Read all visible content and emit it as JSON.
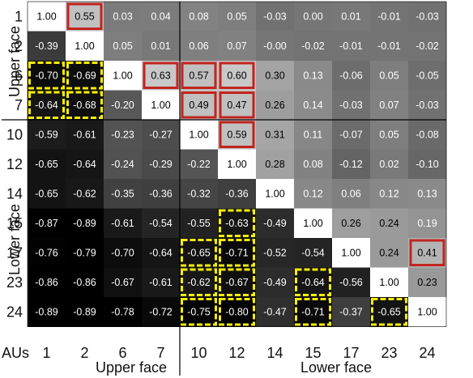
{
  "chart_data": {
    "type": "heatmap",
    "aus": [
      "1",
      "2",
      "6",
      "7",
      "10",
      "12",
      "14",
      "15",
      "17",
      "23",
      "24"
    ],
    "axis_label": "AUs",
    "groups": {
      "upper": "Upper face",
      "lower": "Lower face"
    },
    "values": [
      [
        1.0,
        0.55,
        0.03,
        0.04,
        0.08,
        0.05,
        -0.03,
        0.0,
        0.01,
        -0.01,
        -0.03
      ],
      [
        -0.39,
        1.0,
        0.05,
        0.01,
        0.06,
        0.07,
        -0.0,
        -0.02,
        -0.01,
        -0.01,
        -0.02
      ],
      [
        -0.7,
        -0.69,
        1.0,
        0.63,
        0.57,
        0.6,
        0.3,
        0.13,
        -0.06,
        0.05,
        -0.05
      ],
      [
        -0.64,
        -0.68,
        -0.2,
        1.0,
        0.49,
        0.47,
        0.26,
        0.14,
        -0.03,
        0.07,
        -0.03
      ],
      [
        -0.59,
        -0.61,
        -0.23,
        -0.27,
        1.0,
        0.59,
        0.31,
        0.11,
        -0.07,
        0.05,
        -0.08
      ],
      [
        -0.65,
        -0.64,
        -0.24,
        -0.29,
        -0.22,
        1.0,
        0.28,
        0.08,
        -0.12,
        0.02,
        -0.1
      ],
      [
        -0.65,
        -0.62,
        -0.35,
        -0.36,
        -0.32,
        -0.36,
        1.0,
        0.12,
        0.06,
        0.12,
        0.13
      ],
      [
        -0.87,
        -0.89,
        -0.61,
        -0.54,
        -0.55,
        -0.63,
        -0.49,
        1.0,
        0.26,
        0.24,
        0.19
      ],
      [
        -0.76,
        -0.79,
        -0.7,
        -0.64,
        -0.65,
        -0.71,
        -0.52,
        -0.54,
        1.0,
        0.24,
        0.41
      ],
      [
        -0.86,
        -0.86,
        -0.67,
        -0.61,
        -0.62,
        -0.67,
        -0.49,
        -0.64,
        -0.56,
        1.0,
        0.23
      ],
      [
        -0.89,
        -0.89,
        -0.78,
        -0.72,
        -0.75,
        -0.8,
        -0.47,
        -0.71,
        -0.37,
        -0.65,
        1.0
      ]
    ],
    "value_labels": [
      [
        "1.00",
        "0.55",
        "0.03",
        "0.04",
        "0.08",
        "0.05",
        "-0.03",
        "0.00",
        "0.01",
        "-0.01",
        "-0.03"
      ],
      [
        "-0.39",
        "1.00",
        "0.05",
        "0.01",
        "0.06",
        "0.07",
        "-0.00",
        "-0.02",
        "-0.01",
        "-0.01",
        "-0.02"
      ],
      [
        "-0.70",
        "-0.69",
        "1.00",
        "0.63",
        "0.57",
        "0.60",
        "0.30",
        "0.13",
        "-0.06",
        "0.05",
        "-0.05"
      ],
      [
        "-0.64",
        "-0.68",
        "-0.20",
        "1.00",
        "0.49",
        "0.47",
        "0.26",
        "0.14",
        "-0.03",
        "0.07",
        "-0.03"
      ],
      [
        "-0.59",
        "-0.61",
        "-0.23",
        "-0.27",
        "1.00",
        "0.59",
        "0.31",
        "0.11",
        "-0.07",
        "0.05",
        "-0.08"
      ],
      [
        "-0.65",
        "-0.64",
        "-0.24",
        "-0.29",
        "-0.22",
        "1.00",
        "0.28",
        "0.08",
        "-0.12",
        "0.02",
        "-0.10"
      ],
      [
        "-0.65",
        "-0.62",
        "-0.35",
        "-0.36",
        "-0.32",
        "-0.36",
        "1.00",
        "0.12",
        "0.06",
        "0.12",
        "0.13"
      ],
      [
        "-0.87",
        "-0.89",
        "-0.61",
        "-0.54",
        "-0.55",
        "-0.63",
        "-0.49",
        "1.00",
        "0.26",
        "0.24",
        "0.19"
      ],
      [
        "-0.76",
        "-0.79",
        "-0.70",
        "-0.64",
        "-0.65",
        "-0.71",
        "-0.52",
        "-0.54",
        "1.00",
        "0.24",
        "0.41"
      ],
      [
        "-0.86",
        "-0.86",
        "-0.67",
        "-0.61",
        "-0.62",
        "-0.67",
        "-0.49",
        "-0.64",
        "-0.56",
        "1.00",
        "0.23"
      ],
      [
        "-0.89",
        "-0.89",
        "-0.78",
        "-0.72",
        "-0.75",
        "-0.80",
        "-0.47",
        "-0.71",
        "-0.37",
        "-0.65",
        "1.00"
      ]
    ],
    "value_range": [
      -1,
      1
    ],
    "highlights": {
      "red_solid": [
        [
          0,
          1
        ],
        [
          2,
          3
        ],
        [
          2,
          4
        ],
        [
          2,
          5
        ],
        [
          3,
          4
        ],
        [
          3,
          5
        ],
        [
          4,
          5
        ],
        [
          8,
          10
        ]
      ],
      "yellow_dashed": [
        [
          2,
          0
        ],
        [
          2,
          1
        ],
        [
          3,
          0
        ],
        [
          3,
          1
        ],
        [
          7,
          5
        ],
        [
          8,
          4
        ],
        [
          8,
          5
        ],
        [
          9,
          4
        ],
        [
          9,
          5
        ],
        [
          9,
          7
        ],
        [
          10,
          4
        ],
        [
          10,
          5
        ],
        [
          10,
          7
        ],
        [
          10,
          9
        ]
      ]
    },
    "colors": {
      "red_box": "#c0251e",
      "yellow_box": "#f7ef00",
      "diagonal": "#ffffff",
      "divider": "#000000"
    },
    "legend": "none",
    "grid": false
  }
}
